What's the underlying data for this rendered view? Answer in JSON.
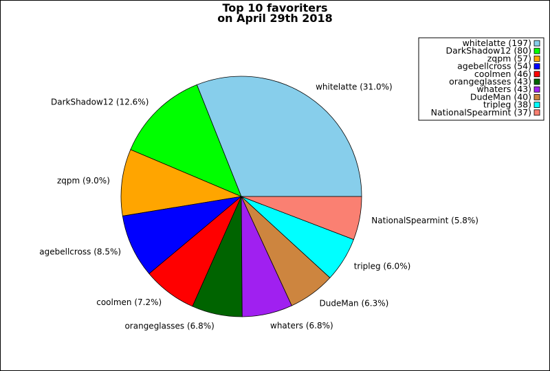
{
  "chart_data": {
    "type": "pie",
    "title_lines": [
      "Top 10 favoriters",
      "on April 29th 2018"
    ],
    "legend_placement": "top-right",
    "slices": [
      {
        "name": "whitelatte",
        "value": 197,
        "pct_label": "whitelatte (31.0%)",
        "legend_label": "whitelatte (197)",
        "color": "#87CEEB"
      },
      {
        "name": "DarkShadow12",
        "value": 80,
        "pct_label": "DarkShadow12 (12.6%)",
        "legend_label": "DarkShadow12 (80)",
        "color": "#00FF00"
      },
      {
        "name": "zqpm",
        "value": 57,
        "pct_label": "zqpm (9.0%)",
        "legend_label": "zqpm (57)",
        "color": "#FFA500"
      },
      {
        "name": "agebellcross",
        "value": 54,
        "pct_label": "agebellcross (8.5%)",
        "legend_label": "agebellcross (54)",
        "color": "#0000FF"
      },
      {
        "name": "coolmen",
        "value": 46,
        "pct_label": "coolmen (7.2%)",
        "legend_label": "coolmen (46)",
        "color": "#FF0000"
      },
      {
        "name": "orangeglasses",
        "value": 43,
        "pct_label": "orangeglasses (6.8%)",
        "legend_label": "orangeglasses (43)",
        "color": "#006400"
      },
      {
        "name": "whaters",
        "value": 43,
        "pct_label": "whaters (6.8%)",
        "legend_label": "whaters (43)",
        "color": "#A020F0"
      },
      {
        "name": "DudeMan",
        "value": 40,
        "pct_label": "DudeMan (6.3%)",
        "legend_label": "DudeMan (40)",
        "color": "#CD853F"
      },
      {
        "name": "tripleg",
        "value": 38,
        "pct_label": "tripleg (6.0%)",
        "legend_label": "tripleg (38)",
        "color": "#00FFFF"
      },
      {
        "name": "NationalSpearmint",
        "value": 37,
        "pct_label": "NationalSpearmint (5.8%)",
        "legend_label": "NationalSpearmint (37)",
        "color": "#FA8072"
      }
    ]
  }
}
